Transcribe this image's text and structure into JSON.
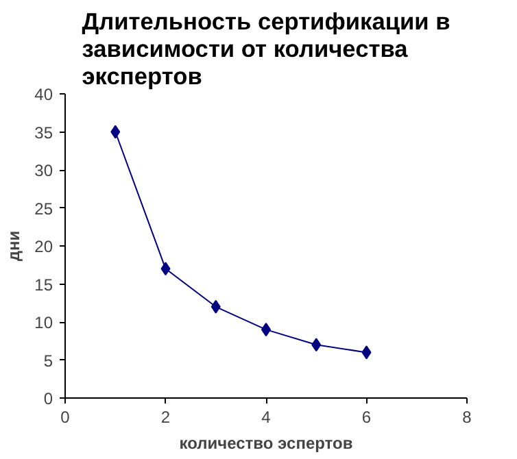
{
  "chart_data": {
    "type": "line",
    "title": "Длительность сертификации в\nзависимости от количества\nэкспертов",
    "xlabel": "количество эспертов",
    "ylabel": "дни",
    "x": [
      1,
      2,
      3,
      4,
      5,
      6
    ],
    "series": [
      {
        "color": "#000080",
        "values": [
          35,
          17,
          12,
          9,
          7,
          6
        ]
      }
    ],
    "xlim": [
      0,
      8
    ],
    "xticks": [
      0,
      2,
      4,
      6,
      8
    ],
    "ylim": [
      0,
      40
    ],
    "yticks": [
      0,
      5,
      10,
      15,
      20,
      25,
      30,
      35,
      40
    ],
    "grid": false,
    "marker": "diamond",
    "line_style": "solid"
  }
}
